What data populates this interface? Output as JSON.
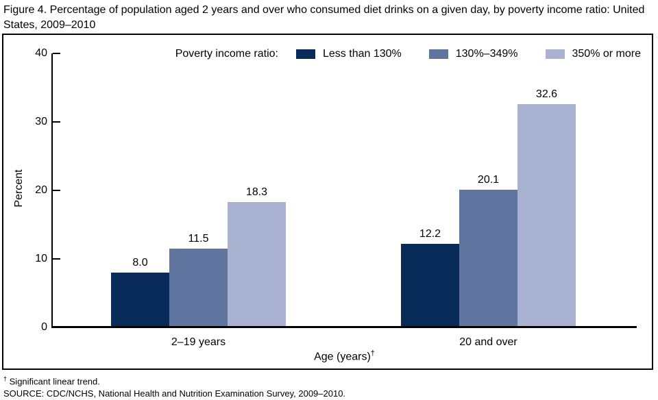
{
  "title": "Figure 4. Percentage of population aged 2 years and over who consumed diet drinks on a given day, by poverty income ratio: United States, 2009–2010",
  "legend": {
    "label": "Poverty income ratio:"
  },
  "chart_data": {
    "type": "bar",
    "title": "Figure 4. Percentage of population aged 2 years and over who consumed diet drinks on a given day, by poverty income ratio: United States, 2009–2010",
    "categories": [
      "2–19 years",
      "20 and over"
    ],
    "series": [
      {
        "name": "Less than 130%",
        "color": "#082b5a",
        "values": [
          8.0,
          12.2
        ]
      },
      {
        "name": "130%–349%",
        "color": "#6074a0",
        "values": [
          11.5,
          20.1
        ]
      },
      {
        "name": "350% or more",
        "color": "#a9b3d1",
        "values": [
          18.3,
          32.6
        ]
      }
    ],
    "xlabel": "Age (years)",
    "xlabel_superscript": "†",
    "ylabel": "Percent",
    "ylim": [
      0,
      40
    ],
    "yticks": [
      0,
      10,
      20,
      30,
      40
    ],
    "grid": false,
    "legend_position": "top-right",
    "value_label_decimals": 1
  },
  "footnotes": {
    "note_superscript": "†",
    "note": "Significant linear trend.",
    "source": "SOURCE: CDC/NCHS, National Health and Nutrition Examination Survey, 2009–2010."
  }
}
